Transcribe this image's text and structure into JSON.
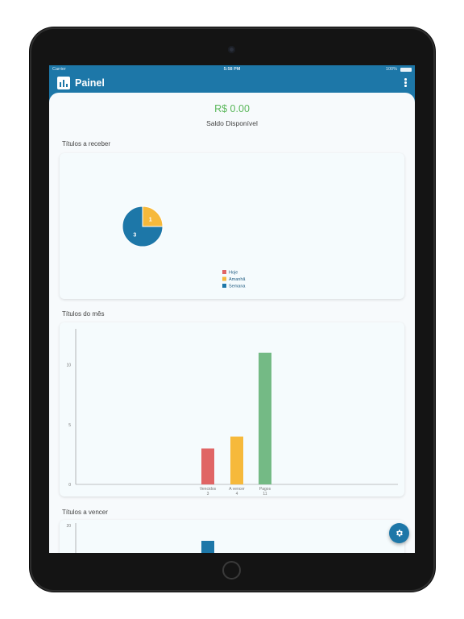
{
  "status_bar": {
    "carrier": "Carrier",
    "time": "5:58 PM",
    "battery": "100%"
  },
  "app_bar": {
    "title": "Painel",
    "icon": "bar-chart-icon",
    "menu_icon": "more-vert-icon"
  },
  "balance": {
    "value": "R$ 0.00",
    "label": "Saldo Disponível"
  },
  "sections": {
    "receber": "Títulos a receber",
    "mes": "Títulos do mês",
    "vencer": "Títulos a vencer"
  },
  "fab": {
    "icon": "gear-icon"
  },
  "colors": {
    "primary": "#1d77a8",
    "balance": "#5cb85c",
    "red": "#e06565",
    "yellow": "#f6b93b",
    "green": "#74ba85"
  },
  "chart_data": [
    {
      "type": "pie",
      "slices": [
        {
          "name": "Hoje",
          "value": 0,
          "color": "#e06565"
        },
        {
          "name": "Amanhã",
          "value": 1,
          "color": "#f6b93b"
        },
        {
          "name": "Semana",
          "value": 3,
          "color": "#1d77a8"
        }
      ],
      "legend": [
        "Hoje",
        "Amanhã",
        "Semana"
      ],
      "legend_position": "bottom"
    },
    {
      "type": "bar",
      "categories": [
        "Vencidos",
        "A vencer",
        "Pagos"
      ],
      "values": [
        3,
        4,
        11
      ],
      "value_labels": [
        "3",
        "4",
        "11"
      ],
      "colors": [
        "#e06565",
        "#f6b93b",
        "#74ba85"
      ],
      "y_ticks": [
        "0",
        "5",
        "10"
      ],
      "ylim": [
        0,
        13
      ]
    },
    {
      "type": "bar",
      "y_ticks": [
        "20"
      ],
      "ylim": [
        0,
        20
      ],
      "colors": [
        "#1d77a8"
      ],
      "partially_visible": true
    }
  ]
}
